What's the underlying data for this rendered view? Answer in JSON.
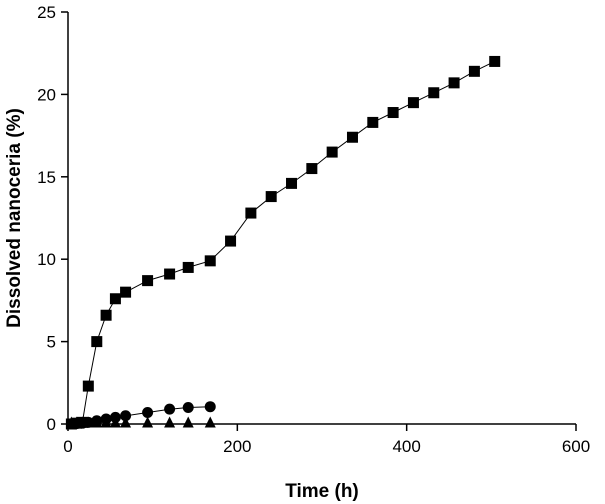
{
  "chart_data": {
    "type": "scatter",
    "title": "",
    "xlabel": "Time (h)",
    "ylabel": "Dissolved nanoceria (%)",
    "xlim": [
      0,
      600
    ],
    "ylim": [
      0,
      25
    ],
    "xticks": [
      0,
      200,
      400,
      600
    ],
    "yticks": [
      0,
      5,
      10,
      15,
      20,
      25
    ],
    "grid": false,
    "legend": "none",
    "series": [
      {
        "marker": "square",
        "color": "#000000",
        "x": [
          4,
          10,
          17,
          24,
          34,
          45,
          56,
          68,
          94,
          120,
          142,
          168,
          192,
          216,
          240,
          264,
          288,
          312,
          336,
          360,
          384,
          408,
          432,
          456,
          480,
          504
        ],
        "y": [
          0,
          0.05,
          0.1,
          2.3,
          5.0,
          6.6,
          7.6,
          8.0,
          8.7,
          9.1,
          9.5,
          9.9,
          11.1,
          12.8,
          13.8,
          14.6,
          15.5,
          16.5,
          17.4,
          18.3,
          18.9,
          19.5,
          20.1,
          20.7,
          21.4,
          22.0
        ]
      },
      {
        "marker": "circle",
        "color": "#000000",
        "x": [
          4,
          10,
          17,
          24,
          34,
          45,
          56,
          68,
          94,
          120,
          142,
          168
        ],
        "y": [
          0,
          0.02,
          0.05,
          0.1,
          0.2,
          0.3,
          0.4,
          0.5,
          0.7,
          0.9,
          1.0,
          1.05
        ]
      },
      {
        "marker": "triangle",
        "color": "#000000",
        "x": [
          4,
          10,
          17,
          24,
          34,
          45,
          56,
          68,
          94,
          120,
          142,
          168
        ],
        "y": [
          0,
          0,
          0,
          0,
          0,
          0,
          0,
          0,
          0,
          0,
          0,
          0
        ]
      }
    ]
  }
}
